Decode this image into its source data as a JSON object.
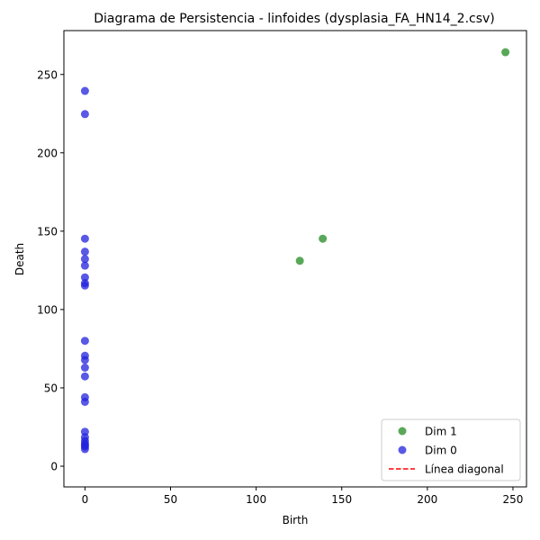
{
  "chart_data": {
    "type": "scatter",
    "title": "Diagrama de Persistencia - linfoides (dysplasia_FA_HN14_2.csv)",
    "xlabel": "Birth",
    "ylabel": "Death",
    "xlim": [
      -12.3,
      257.9
    ],
    "ylim": [
      -13.2,
      278.0
    ],
    "xticks": [
      "0",
      "50",
      "100",
      "150",
      "200",
      "250"
    ],
    "yticks": [
      "0",
      "50",
      "100",
      "150",
      "200",
      "250"
    ],
    "xtick_values": [
      0,
      50,
      100,
      150,
      200,
      250
    ],
    "ytick_values": [
      0,
      50,
      100,
      150,
      200,
      250
    ],
    "grid": false,
    "legend_position": "bottom-right",
    "series": [
      {
        "name": "Dim 1",
        "color": "#228B22",
        "x": [
          245.6,
          138.9,
          125.5
        ],
        "y": [
          264.2,
          145.2,
          131.1
        ]
      },
      {
        "name": "Dim 0",
        "color": "#2222DD",
        "x": [
          0,
          0,
          0,
          0,
          0,
          0,
          0,
          0,
          0,
          0,
          0,
          0,
          0,
          0,
          0,
          0,
          0,
          0,
          0,
          0,
          0,
          0,
          0
        ],
        "y": [
          239.5,
          224.7,
          145.2,
          136.9,
          132.2,
          128.0,
          120.5,
          116.8,
          115.3,
          80.0,
          70.5,
          67.8,
          62.9,
          57.3,
          44.0,
          41.1,
          22.0,
          18.5,
          16.2,
          14.5,
          13.4,
          12.5,
          10.9
        ]
      }
    ],
    "diagonal": {
      "name": "Línea diagonal",
      "color": "#ff0000",
      "style": "dashed"
    }
  }
}
